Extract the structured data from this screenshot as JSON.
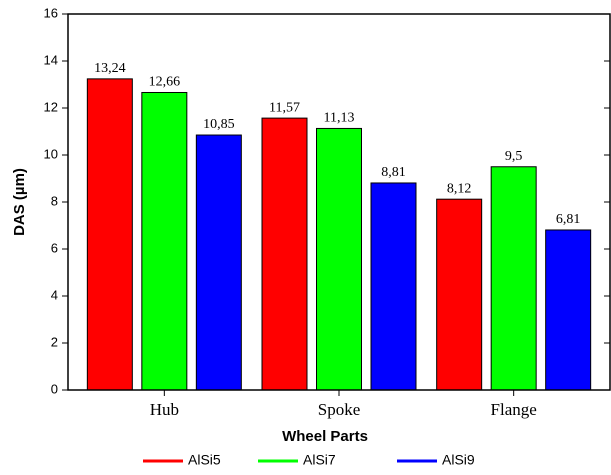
{
  "chart_data": {
    "type": "bar",
    "x_label": "Wheel Parts",
    "y_label": "DAS (µm)",
    "categories": [
      "Hub",
      "Spoke",
      "Flange"
    ],
    "series": [
      {
        "name": "AlSi5",
        "color": "#ff0000",
        "values": [
          13.24,
          11.57,
          8.12
        ],
        "value_labels": [
          "13,24",
          "11,57",
          "8,12"
        ]
      },
      {
        "name": "AlSi7",
        "color": "#00ff00",
        "values": [
          12.66,
          11.13,
          9.5
        ],
        "value_labels": [
          "12,66",
          "11,13",
          "9,5"
        ]
      },
      {
        "name": "AlSi9",
        "color": "#0000ff",
        "values": [
          10.85,
          8.81,
          6.81
        ],
        "value_labels": [
          "10,85",
          "8,81",
          "6,81"
        ]
      }
    ],
    "ylim": [
      0,
      16
    ],
    "yticks": [
      0,
      2,
      4,
      6,
      8,
      10,
      12,
      14,
      16
    ],
    "legend": "bottom"
  }
}
